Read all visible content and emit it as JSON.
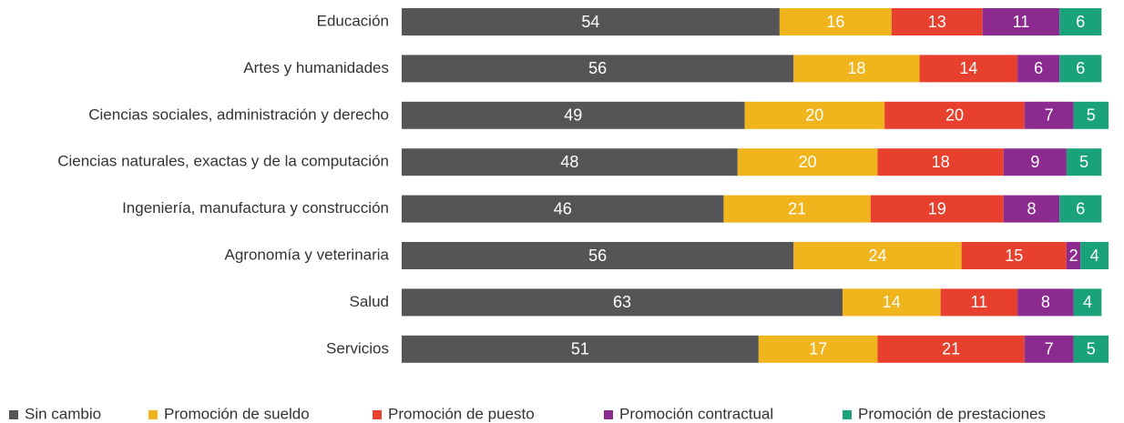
{
  "chart_data": {
    "type": "stacked-bar-horizontal",
    "categories": [
      "Educación",
      "Artes y humanidades",
      "Ciencias sociales, administración y derecho",
      "Ciencias naturales, exactas y de la computación",
      "Ingeniería, manufactura y construcción",
      "Agronomía y veterinaria",
      "Salud",
      "Servicios"
    ],
    "series": [
      {
        "name": "Sin cambio",
        "color": "#555558",
        "values": [
          54,
          56,
          49,
          48,
          46,
          56,
          63,
          51
        ]
      },
      {
        "name": "Promoción de sueldo",
        "color": "#f0b41c",
        "values": [
          16,
          18,
          20,
          20,
          21,
          24,
          14,
          17
        ]
      },
      {
        "name": "Promoción de puesto",
        "color": "#e8402f",
        "values": [
          13,
          14,
          20,
          18,
          19,
          15,
          11,
          21
        ]
      },
      {
        "name": "Promoción contractual",
        "color": "#8b2a8f",
        "values": [
          11,
          6,
          7,
          9,
          8,
          2,
          8,
          7
        ]
      },
      {
        "name": "Promoción de prestaciones",
        "color": "#1aa37a",
        "values": [
          6,
          6,
          5,
          5,
          6,
          4,
          4,
          5
        ]
      }
    ],
    "legend": "bottom"
  }
}
